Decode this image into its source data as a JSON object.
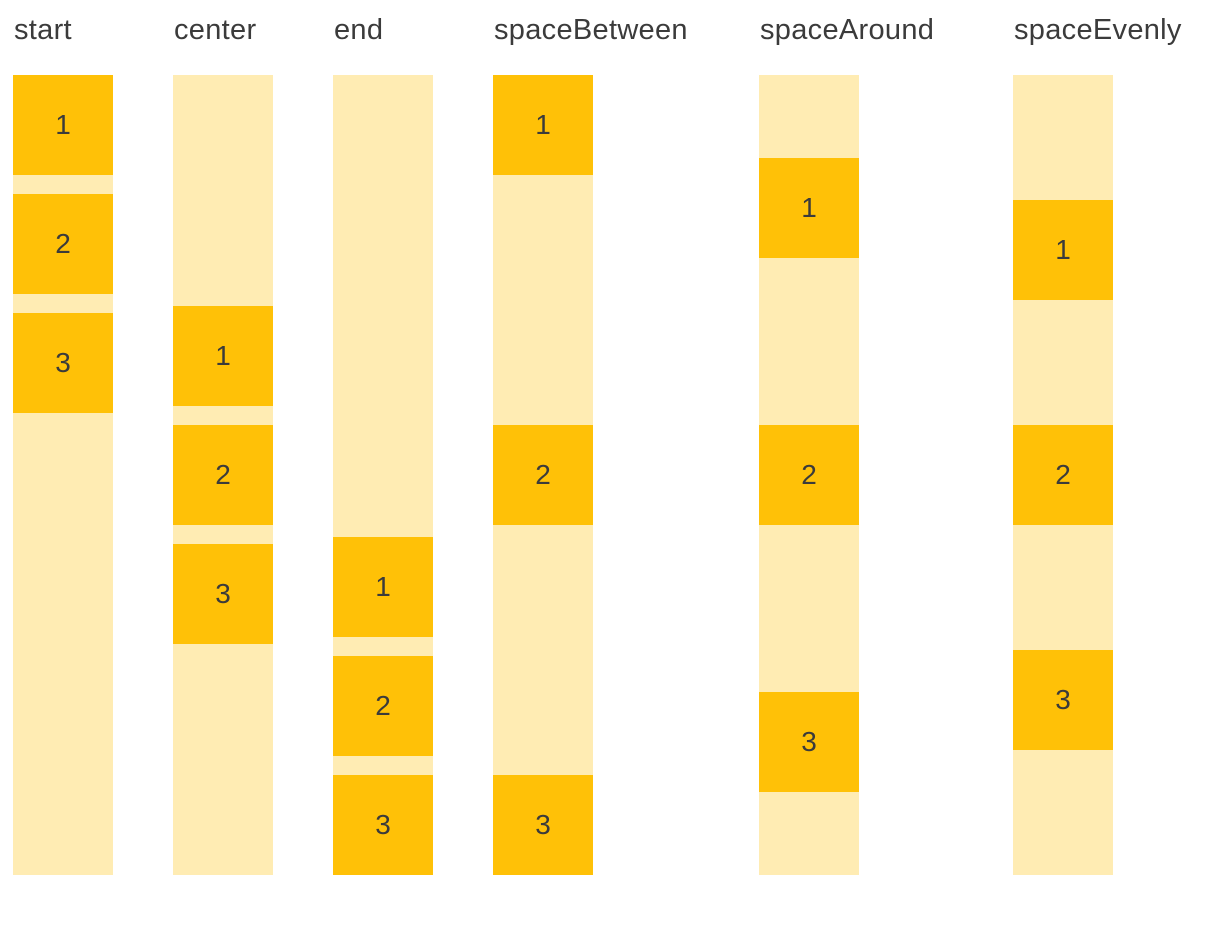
{
  "diagram": {
    "columns": [
      {
        "label": "start",
        "arrangement": "start",
        "items": [
          "1",
          "2",
          "3"
        ]
      },
      {
        "label": "center",
        "arrangement": "center",
        "items": [
          "1",
          "2",
          "3"
        ]
      },
      {
        "label": "end",
        "arrangement": "end",
        "items": [
          "1",
          "2",
          "3"
        ]
      },
      {
        "label": "spaceBetween",
        "arrangement": "spaceBetween",
        "items": [
          "1",
          "2",
          "3"
        ]
      },
      {
        "label": "spaceAround",
        "arrangement": "spaceAround",
        "items": [
          "1",
          "2",
          "3"
        ]
      },
      {
        "label": "spaceEvenly",
        "arrangement": "spaceEvenly",
        "items": [
          "1",
          "2",
          "3"
        ]
      }
    ],
    "colors": {
      "item_fill": "#FFC107",
      "track_fill": "#FFECB3",
      "label_text": "#3B3B3B",
      "item_text": "#3B3B3B",
      "background": "#FFFFFF"
    }
  }
}
